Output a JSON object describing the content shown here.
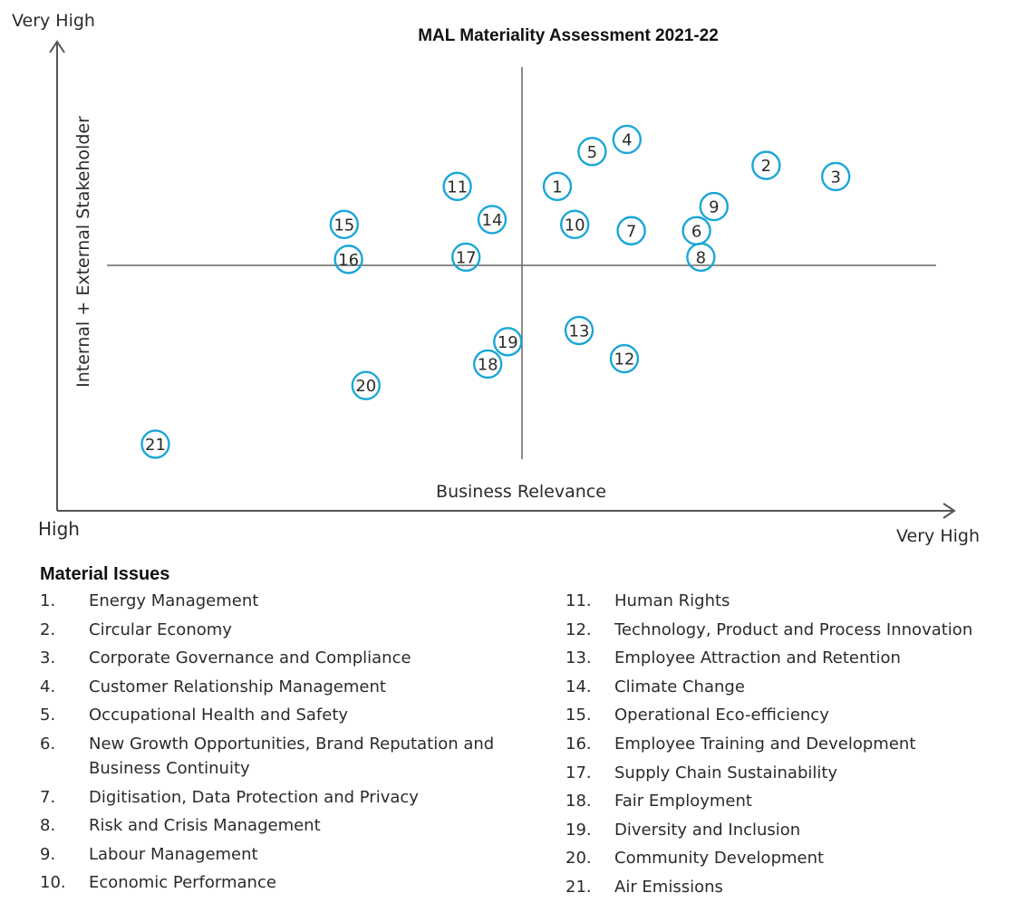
{
  "chart_data": {
    "type": "scatter",
    "title": "MAL Materiality Assessment 2021-22",
    "xlabel": "Business Relevance",
    "ylabel": "Internal + External Stakeholder",
    "x_axis_low_label": "High",
    "x_axis_high_label": "Very High",
    "y_axis_high_label": "Very High",
    "xlim": [
      0,
      10
    ],
    "ylim": [
      0,
      10
    ],
    "quadrant_split": {
      "x": 5.5,
      "y": 5.5
    },
    "grid": false,
    "marker_color": "#1aa6d9",
    "points": [
      {
        "label": "1",
        "x": 5.75,
        "y": 7.25
      },
      {
        "label": "2",
        "x": 8.15,
        "y": 7.72
      },
      {
        "label": "3",
        "x": 8.95,
        "y": 7.47
      },
      {
        "label": "4",
        "x": 6.55,
        "y": 8.3
      },
      {
        "label": "5",
        "x": 6.15,
        "y": 8.03
      },
      {
        "label": "6",
        "x": 7.35,
        "y": 6.26
      },
      {
        "label": "7",
        "x": 6.6,
        "y": 6.26
      },
      {
        "label": "8",
        "x": 7.4,
        "y": 5.67
      },
      {
        "label": "9",
        "x": 7.55,
        "y": 6.8
      },
      {
        "label": "10",
        "x": 5.95,
        "y": 6.4
      },
      {
        "label": "11",
        "x": 4.6,
        "y": 7.25
      },
      {
        "label": "12",
        "x": 6.52,
        "y": 3.4
      },
      {
        "label": "13",
        "x": 6.0,
        "y": 4.03
      },
      {
        "label": "14",
        "x": 5.0,
        "y": 6.51
      },
      {
        "label": "15",
        "x": 3.3,
        "y": 6.4
      },
      {
        "label": "16",
        "x": 3.35,
        "y": 5.62
      },
      {
        "label": "17",
        "x": 4.7,
        "y": 5.67
      },
      {
        "label": "18",
        "x": 4.95,
        "y": 3.28
      },
      {
        "label": "19",
        "x": 5.18,
        "y": 3.78
      },
      {
        "label": "20",
        "x": 3.55,
        "y": 2.8
      },
      {
        "label": "21",
        "x": 1.13,
        "y": 1.49
      }
    ]
  },
  "legend": {
    "title": "Material Issues",
    "left": [
      {
        "num": "1.",
        "text": "Energy Management"
      },
      {
        "num": "2.",
        "text": "Circular Economy"
      },
      {
        "num": "3.",
        "text": "Corporate Governance and Compliance"
      },
      {
        "num": "4.",
        "text": "Customer Relationship Management"
      },
      {
        "num": "5.",
        "text": "Occupational Health and Safety"
      },
      {
        "num": "6.",
        "text": "New Growth Opportunities, Brand Reputation and Business Continuity"
      },
      {
        "num": "7.",
        "text": "Digitisation, Data Protection and Privacy"
      },
      {
        "num": "8.",
        "text": "Risk and Crisis Management"
      },
      {
        "num": "9.",
        "text": "Labour Management"
      },
      {
        "num": "10.",
        "text": "Economic Performance"
      }
    ],
    "right": [
      {
        "num": "11.",
        "text": "Human Rights"
      },
      {
        "num": "12.",
        "text": "Technology, Product and Process Innovation"
      },
      {
        "num": "13.",
        "text": "Employee Attraction and Retention"
      },
      {
        "num": "14.",
        "text": "Climate Change"
      },
      {
        "num": "15.",
        "text": "Operational Eco-efficiency"
      },
      {
        "num": "16.",
        "text": "Employee Training and Development"
      },
      {
        "num": "17.",
        "text": "Supply Chain Sustainability"
      },
      {
        "num": "18.",
        "text": "Fair Employment"
      },
      {
        "num": "19.",
        "text": "Diversity and Inclusion"
      },
      {
        "num": "20.",
        "text": "Community Development"
      },
      {
        "num": "21.",
        "text": "Air Emissions"
      }
    ]
  }
}
